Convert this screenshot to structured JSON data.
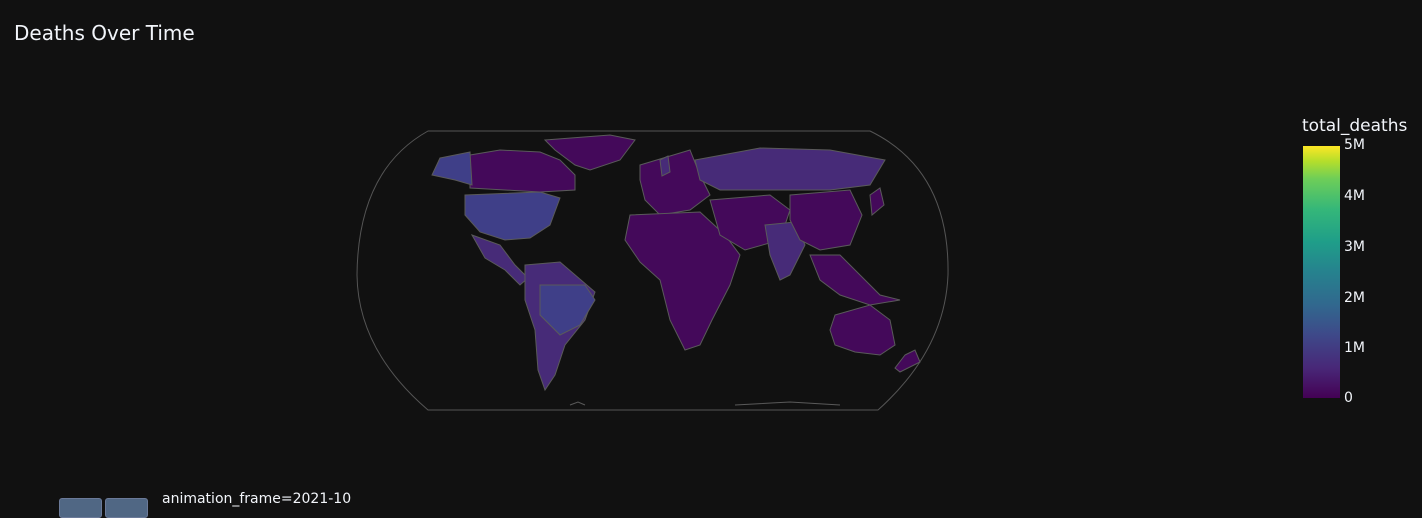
{
  "title": "Deaths Over Time",
  "colorbar": {
    "title": "total_deaths",
    "ticks": [
      "5M",
      "4M",
      "3M",
      "2M",
      "1M",
      "0"
    ],
    "range": [
      0,
      5000000
    ],
    "colorscale": [
      "#440154",
      "#482878",
      "#3e4989",
      "#31688e",
      "#26828e",
      "#1f9e89",
      "#35b779",
      "#6ece58",
      "#b5de2b",
      "#fde725"
    ]
  },
  "animation": {
    "frame_label": "animation_frame=2021-10"
  },
  "map": {
    "projection": "natural earth",
    "fill_colors": {
      "base": "#44095a",
      "mid": "#472b78",
      "high": "#3f3f88",
      "border": "#5a5a5a",
      "ocean": "#111111"
    }
  }
}
